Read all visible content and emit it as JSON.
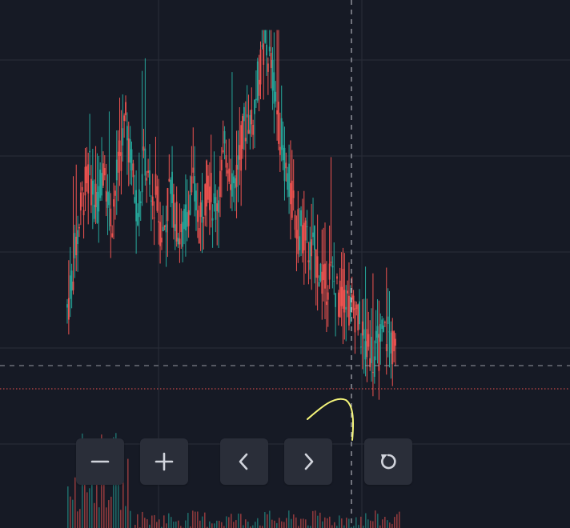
{
  "colors": {
    "background": "#161a25",
    "grid": "#2a2e39",
    "up": "#26a69a",
    "down": "#ef5350",
    "crosshair": "#9598a1",
    "price_line": "#ef5350",
    "drawing": "#f5f57a",
    "button_bg": "#2a2e39",
    "button_icon": "#d1d4dc"
  },
  "chart_data": {
    "type": "candlestick",
    "title": "",
    "grid": true,
    "crosshair": true,
    "last_price_line": true,
    "drawing_stroke": true,
    "series": [
      {
        "values": [
          0.28,
          0.34,
          0.42,
          0.5,
          0.58,
          0.62,
          0.66,
          0.6,
          0.55,
          0.62,
          0.7,
          0.6,
          0.52,
          0.6,
          0.68,
          0.74,
          0.8,
          0.72,
          0.62,
          0.55,
          0.6,
          0.7,
          0.62,
          0.55,
          0.6,
          0.52,
          0.48,
          0.55,
          0.62,
          0.56,
          0.5,
          0.46,
          0.52,
          0.58,
          0.62,
          0.56,
          0.5,
          0.58,
          0.64,
          0.6,
          0.55,
          0.6,
          0.66,
          0.72,
          0.68,
          0.62,
          0.66,
          0.72,
          0.78,
          0.82,
          0.78,
          0.86,
          0.92,
          0.98,
          1.0,
          0.96,
          0.9,
          0.82,
          0.75,
          0.68,
          0.62,
          0.58,
          0.52,
          0.48,
          0.5,
          0.46,
          0.42,
          0.44,
          0.4,
          0.36,
          0.34,
          0.38,
          0.36,
          0.32,
          0.3,
          0.34,
          0.3,
          0.26,
          0.28,
          0.24,
          0.2,
          0.16,
          0.18,
          0.14,
          0.16,
          0.18,
          0.2,
          0.22,
          0.18,
          0.16
        ]
      }
    ]
  },
  "toolbar": {
    "zoom_out": {
      "icon": "minus-icon",
      "label": "Zoom out"
    },
    "zoom_in": {
      "icon": "plus-icon",
      "label": "Zoom in"
    },
    "scroll_left": {
      "icon": "chevron-left-icon",
      "label": "Scroll to the left"
    },
    "scroll_right": {
      "icon": "chevron-right-icon",
      "label": "Scroll to the right"
    },
    "reset": {
      "icon": "reset-icon",
      "label": "Reset chart view"
    }
  }
}
